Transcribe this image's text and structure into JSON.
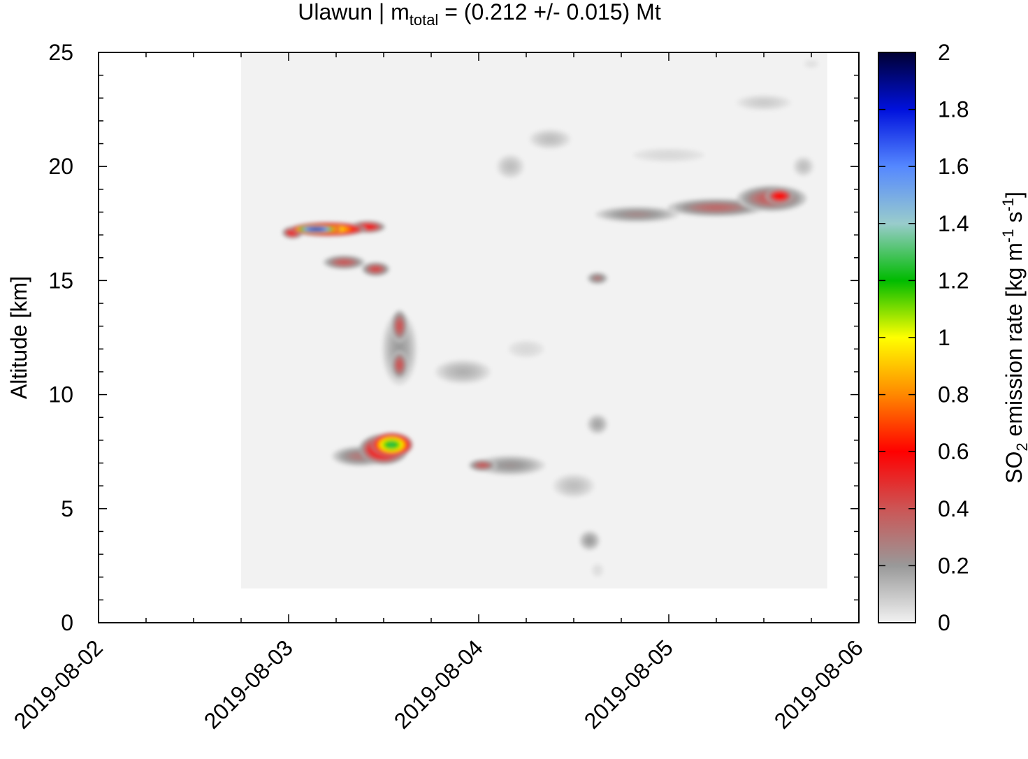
{
  "chart_data": {
    "type": "heatmap",
    "title": {
      "volcano": "Ulawun",
      "separator": " | ",
      "mass_symbol": "m",
      "mass_subscript": "total",
      "mass_value": " = (0.212 +/- 0.015) Mt"
    },
    "xlabel": "",
    "ylabel": "Altitude [km]",
    "x_ticks": [
      "2019-08-02",
      "2019-08-03",
      "2019-08-04",
      "2019-08-05",
      "2019-08-06"
    ],
    "xlim": [
      "2019-08-02",
      "2019-08-06"
    ],
    "y_ticks": [
      "0",
      "5",
      "10",
      "15",
      "20",
      "25"
    ],
    "ylim": [
      0,
      25
    ],
    "data_extent": {
      "x": [
        "2019-08-02 18:00",
        "2019-08-05 20:00"
      ],
      "y": [
        1.5,
        25
      ]
    },
    "colorbar": {
      "label_parts": [
        "SO",
        "2",
        " emission rate [kg m",
        "-1",
        " s",
        "-1",
        "]"
      ],
      "ticks": [
        "0",
        "0.2",
        "0.4",
        "0.6",
        "0.8",
        "1",
        "1.2",
        "1.4",
        "1.6",
        "1.8",
        "2"
      ],
      "range": [
        0,
        2
      ],
      "stops": [
        {
          "v": 0.0,
          "color": "#f2f2f2"
        },
        {
          "v": 0.2,
          "color": "#999999"
        },
        {
          "v": 0.4,
          "color": "#cc5555"
        },
        {
          "v": 0.6,
          "color": "#ff0000"
        },
        {
          "v": 0.8,
          "color": "#ff8800"
        },
        {
          "v": 1.0,
          "color": "#ffff00"
        },
        {
          "v": 1.2,
          "color": "#00bb00"
        },
        {
          "v": 1.4,
          "color": "#99cccc"
        },
        {
          "v": 1.6,
          "color": "#5588ff"
        },
        {
          "v": 1.8,
          "color": "#0011dd"
        },
        {
          "v": 2.0,
          "color": "#000033"
        }
      ]
    },
    "blobs": [
      {
        "t": "2019-08-03 00:30",
        "dt_h": 1.5,
        "z": 17.1,
        "dz": 0.3,
        "v": 0.6
      },
      {
        "t": "2019-08-03 03:30",
        "dt_h": 3.5,
        "z": 17.25,
        "dz": 0.22,
        "v": 1.95
      },
      {
        "t": "2019-08-03 05:00",
        "dt_h": 5.5,
        "z": 17.25,
        "dz": 0.35,
        "v": 1.1
      },
      {
        "t": "2019-08-03 10:00",
        "dt_h": 2.5,
        "z": 17.35,
        "dz": 0.3,
        "v": 0.6
      },
      {
        "t": "2019-08-03 11:00",
        "dt_h": 2.0,
        "z": 15.5,
        "dz": 0.35,
        "v": 0.45
      },
      {
        "t": "2019-08-03 07:00",
        "dt_h": 3.0,
        "z": 15.8,
        "dz": 0.35,
        "v": 0.4
      },
      {
        "t": "2019-08-03 14:00",
        "dt_h": 1.2,
        "z": 13.0,
        "dz": 0.8,
        "v": 0.42
      },
      {
        "t": "2019-08-03 14:00",
        "dt_h": 1.2,
        "z": 11.3,
        "dz": 0.7,
        "v": 0.42
      },
      {
        "t": "2019-08-03 14:00",
        "dt_h": 2.5,
        "z": 12.0,
        "dz": 1.8,
        "v": 0.2
      },
      {
        "t": "2019-08-03 22:00",
        "dt_h": 4.0,
        "z": 11.0,
        "dz": 0.6,
        "v": 0.15
      },
      {
        "t": "2019-08-04 06:00",
        "dt_h": 3.0,
        "z": 12.0,
        "dz": 0.5,
        "v": 0.06
      },
      {
        "t": "2019-08-03 13:00",
        "dt_h": 3.0,
        "z": 7.8,
        "dz": 0.6,
        "v": 1.3
      },
      {
        "t": "2019-08-03 12:00",
        "dt_h": 3.5,
        "z": 7.6,
        "dz": 0.75,
        "v": 0.75
      },
      {
        "t": "2019-08-03 09:00",
        "dt_h": 4.0,
        "z": 7.3,
        "dz": 0.5,
        "v": 0.3
      },
      {
        "t": "2019-08-04 00:30",
        "dt_h": 2.0,
        "z": 6.9,
        "dz": 0.3,
        "v": 0.4
      },
      {
        "t": "2019-08-04 04:00",
        "dt_h": 5.0,
        "z": 6.9,
        "dz": 0.5,
        "v": 0.22
      },
      {
        "t": "2019-08-04 12:00",
        "dt_h": 3.0,
        "z": 6.0,
        "dz": 0.6,
        "v": 0.12
      },
      {
        "t": "2019-08-04 15:00",
        "dt_h": 1.5,
        "z": 15.1,
        "dz": 0.3,
        "v": 0.3
      },
      {
        "t": "2019-08-04 15:00",
        "dt_h": 1.5,
        "z": 8.7,
        "dz": 0.5,
        "v": 0.18
      },
      {
        "t": "2019-08-04 14:00",
        "dt_h": 1.5,
        "z": 3.6,
        "dz": 0.5,
        "v": 0.2
      },
      {
        "t": "2019-08-04 15:00",
        "dt_h": 1.0,
        "z": 2.3,
        "dz": 0.4,
        "v": 0.05
      },
      {
        "t": "2019-08-04 04:00",
        "dt_h": 2.0,
        "z": 20.0,
        "dz": 0.6,
        "v": 0.12
      },
      {
        "t": "2019-08-04 09:00",
        "dt_h": 3.0,
        "z": 21.2,
        "dz": 0.5,
        "v": 0.12
      },
      {
        "t": "2019-08-04 20:00",
        "dt_h": 6.0,
        "z": 17.9,
        "dz": 0.4,
        "v": 0.25
      },
      {
        "t": "2019-08-05 06:00",
        "dt_h": 7.0,
        "z": 18.2,
        "dz": 0.45,
        "v": 0.35
      },
      {
        "t": "2019-08-05 14:00",
        "dt_h": 2.0,
        "z": 18.7,
        "dz": 0.4,
        "v": 0.65
      },
      {
        "t": "2019-08-05 13:00",
        "dt_h": 5.0,
        "z": 18.6,
        "dz": 0.65,
        "v": 0.4
      },
      {
        "t": "2019-08-05 17:00",
        "dt_h": 1.5,
        "z": 20.0,
        "dz": 0.5,
        "v": 0.12
      },
      {
        "t": "2019-08-05 12:00",
        "dt_h": 4.0,
        "z": 22.8,
        "dz": 0.4,
        "v": 0.09
      },
      {
        "t": "2019-08-05 00:00",
        "dt_h": 6.0,
        "z": 20.5,
        "dz": 0.4,
        "v": 0.06
      },
      {
        "t": "2019-08-05 18:00",
        "dt_h": 1.5,
        "z": 24.5,
        "dz": 0.3,
        "v": 0.04
      }
    ]
  }
}
